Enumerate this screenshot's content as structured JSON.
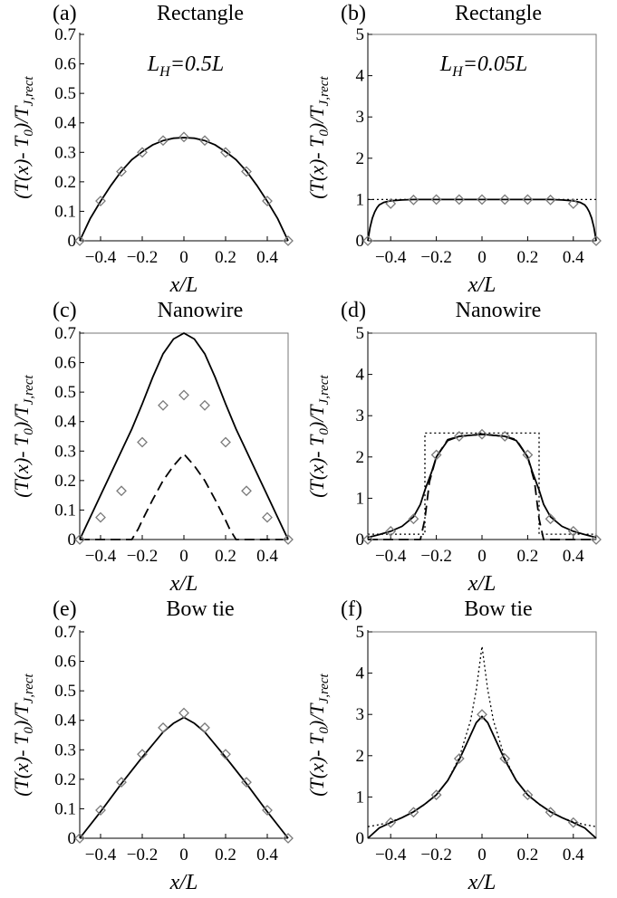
{
  "figure": {
    "ylabel_parts": [
      "(T(x)- T",
      "0",
      ")/T",
      "J,rect"
    ],
    "xlabel": "x/L"
  },
  "colors": {
    "line": "#000000",
    "marker": "#7a7a7a",
    "frame": "#777777"
  },
  "chart_data": [
    {
      "id": "a",
      "type": "line",
      "panel_letter": "(a)",
      "title": "Rectangle",
      "annotation": "L_H=0.5L",
      "xlabel": "x/L",
      "ylabel": "(T(x)-T0)/TJ,rect",
      "xlim": [
        -0.5,
        0.5
      ],
      "ylim": [
        0,
        0.7
      ],
      "xticks": [
        -0.4,
        -0.2,
        0,
        0.2,
        0.4
      ],
      "yticks": [
        0,
        0.1,
        0.2,
        0.3,
        0.4,
        0.5,
        0.6,
        0.7
      ],
      "ytick_labels": [
        "0",
        "0.1",
        "0.2",
        "0.3",
        "0.4",
        "0.5",
        "0.6",
        "0.7"
      ],
      "frame": false,
      "grid": false,
      "series": [
        {
          "style": "solid",
          "x": [
            -0.5,
            -0.45,
            -0.4,
            -0.35,
            -0.3,
            -0.25,
            -0.2,
            -0.15,
            -0.1,
            -0.05,
            0,
            0.05,
            0.1,
            0.15,
            0.2,
            0.25,
            0.3,
            0.35,
            0.4,
            0.45,
            0.5
          ],
          "y": [
            0,
            0.075,
            0.134,
            0.188,
            0.236,
            0.275,
            0.302,
            0.325,
            0.34,
            0.348,
            0.35,
            0.348,
            0.34,
            0.325,
            0.302,
            0.275,
            0.236,
            0.188,
            0.134,
            0.075,
            0
          ]
        },
        {
          "style": "diamond",
          "x": [
            -0.5,
            -0.4,
            -0.3,
            -0.2,
            -0.1,
            0,
            0.1,
            0.2,
            0.3,
            0.4,
            0.5
          ],
          "y": [
            0,
            0.135,
            0.235,
            0.3,
            0.34,
            0.352,
            0.34,
            0.3,
            0.235,
            0.135,
            0
          ]
        }
      ]
    },
    {
      "id": "b",
      "type": "line",
      "panel_letter": "(b)",
      "title": "Rectangle",
      "annotation": "L_H=0.05L",
      "xlabel": "x/L",
      "ylabel": "(T(x)-T0)/TJ,rect",
      "xlim": [
        -0.5,
        0.5
      ],
      "ylim": [
        0,
        5
      ],
      "xticks": [
        -0.4,
        -0.2,
        0,
        0.2,
        0.4
      ],
      "yticks": [
        0,
        1,
        2,
        3,
        4,
        5
      ],
      "ytick_labels": [
        "0",
        "1",
        "2",
        "3",
        "4",
        "5"
      ],
      "frame": true,
      "grid": false,
      "series": [
        {
          "style": "solid",
          "x": [
            -0.5,
            -0.49,
            -0.48,
            -0.47,
            -0.46,
            -0.45,
            -0.43,
            -0.4,
            -0.35,
            -0.3,
            -0.2,
            -0.1,
            0,
            0.1,
            0.2,
            0.3,
            0.35,
            0.4,
            0.43,
            0.45,
            0.46,
            0.47,
            0.48,
            0.49,
            0.5
          ],
          "y": [
            0,
            0.33,
            0.55,
            0.7,
            0.8,
            0.87,
            0.93,
            0.97,
            0.99,
            1,
            1,
            1,
            1,
            1,
            1,
            1,
            0.99,
            0.97,
            0.93,
            0.87,
            0.8,
            0.7,
            0.55,
            0.33,
            0
          ]
        },
        {
          "style": "dotted",
          "x": [
            -0.5,
            0.5
          ],
          "y": [
            1,
            1
          ]
        },
        {
          "style": "diamond",
          "x": [
            -0.5,
            -0.4,
            -0.3,
            -0.2,
            -0.1,
            0,
            0.1,
            0.2,
            0.3,
            0.4,
            0.5
          ],
          "y": [
            0,
            0.9,
            0.99,
            1,
            1,
            1,
            1,
            1,
            0.99,
            0.9,
            0
          ]
        }
      ]
    },
    {
      "id": "c",
      "type": "line",
      "panel_letter": "(c)",
      "title": "Nanowire",
      "annotation": "",
      "xlabel": "x/L",
      "ylabel": "(T(x)-T0)/TJ,rect",
      "xlim": [
        -0.5,
        0.5
      ],
      "ylim": [
        0,
        0.7
      ],
      "xticks": [
        -0.4,
        -0.2,
        0,
        0.2,
        0.4
      ],
      "yticks": [
        0,
        0.1,
        0.2,
        0.3,
        0.4,
        0.5,
        0.6,
        0.7
      ],
      "ytick_labels": [
        "0",
        "0.1",
        "0.2",
        "0.3",
        "0.4",
        "0.5",
        "0.6",
        "0.7"
      ],
      "frame": true,
      "grid": false,
      "series": [
        {
          "style": "solid",
          "x": [
            -0.5,
            -0.45,
            -0.4,
            -0.35,
            -0.3,
            -0.25,
            -0.2,
            -0.15,
            -0.1,
            -0.05,
            0,
            0.05,
            0.1,
            0.15,
            0.2,
            0.25,
            0.3,
            0.35,
            0.4,
            0.45,
            0.5
          ],
          "y": [
            0,
            0.075,
            0.15,
            0.225,
            0.3,
            0.375,
            0.46,
            0.55,
            0.63,
            0.68,
            0.7,
            0.68,
            0.63,
            0.55,
            0.46,
            0.375,
            0.3,
            0.225,
            0.15,
            0.075,
            0
          ]
        },
        {
          "style": "dashed",
          "x": [
            -0.5,
            -0.25,
            -0.22,
            -0.2,
            -0.15,
            -0.1,
            -0.05,
            0,
            0.05,
            0.1,
            0.15,
            0.2,
            0.22,
            0.25,
            0.5
          ],
          "y": [
            0,
            0,
            0.035,
            0.065,
            0.135,
            0.2,
            0.25,
            0.29,
            0.25,
            0.2,
            0.135,
            0.065,
            0.035,
            0,
            0
          ]
        },
        {
          "style": "diamond",
          "x": [
            -0.5,
            -0.4,
            -0.3,
            -0.2,
            -0.1,
            0,
            0.1,
            0.2,
            0.3,
            0.4,
            0.5
          ],
          "y": [
            0,
            0.075,
            0.165,
            0.33,
            0.455,
            0.49,
            0.455,
            0.33,
            0.165,
            0.075,
            0
          ]
        }
      ]
    },
    {
      "id": "d",
      "type": "line",
      "panel_letter": "(d)",
      "title": "Nanowire",
      "annotation": "",
      "xlabel": "x/L",
      "ylabel": "(T(x)-T0)/TJ,rect",
      "xlim": [
        -0.5,
        0.5
      ],
      "ylim": [
        0,
        5
      ],
      "xticks": [
        -0.4,
        -0.2,
        0,
        0.2,
        0.4
      ],
      "yticks": [
        0,
        1,
        2,
        3,
        4,
        5
      ],
      "ytick_labels": [
        "0",
        "1",
        "2",
        "3",
        "4",
        "5"
      ],
      "frame": true,
      "grid": false,
      "series": [
        {
          "style": "solid",
          "x": [
            -0.5,
            -0.45,
            -0.4,
            -0.35,
            -0.3,
            -0.27,
            -0.25,
            -0.22,
            -0.2,
            -0.15,
            -0.1,
            0,
            0.1,
            0.15,
            0.2,
            0.22,
            0.25,
            0.27,
            0.3,
            0.35,
            0.4,
            0.45,
            0.5
          ],
          "y": [
            0.05,
            0.12,
            0.2,
            0.32,
            0.55,
            0.85,
            1.2,
            1.65,
            2.0,
            2.4,
            2.5,
            2.55,
            2.5,
            2.4,
            2.0,
            1.65,
            1.2,
            0.85,
            0.55,
            0.32,
            0.2,
            0.12,
            0.05
          ]
        },
        {
          "style": "dashed",
          "x": [
            -0.5,
            -0.27,
            -0.25,
            -0.23,
            -0.2,
            -0.15,
            -0.1,
            0,
            0.1,
            0.15,
            0.2,
            0.23,
            0.25,
            0.27,
            0.5
          ],
          "y": [
            0,
            0,
            0.5,
            1.4,
            2.0,
            2.42,
            2.5,
            2.55,
            2.5,
            2.42,
            2.0,
            1.4,
            0.5,
            0,
            0
          ]
        },
        {
          "style": "dotted",
          "x": [
            -0.5,
            -0.25,
            -0.25,
            0.25,
            0.25,
            0.5
          ],
          "y": [
            0.13,
            0.13,
            2.58,
            2.58,
            0.13,
            0.13
          ]
        },
        {
          "style": "diamond",
          "x": [
            -0.5,
            -0.4,
            -0.3,
            -0.2,
            -0.1,
            0,
            0.1,
            0.2,
            0.3,
            0.4,
            0.5
          ],
          "y": [
            0,
            0.2,
            0.5,
            2.05,
            2.5,
            2.55,
            2.5,
            2.05,
            0.5,
            0.2,
            0
          ]
        }
      ]
    },
    {
      "id": "e",
      "type": "line",
      "panel_letter": "(e)",
      "title": "Bow tie",
      "annotation": "",
      "xlabel": "x/L",
      "ylabel": "(T(x)-T0)/TJ,rect",
      "xlim": [
        -0.5,
        0.5
      ],
      "ylim": [
        0,
        0.7
      ],
      "xticks": [
        -0.4,
        -0.2,
        0,
        0.2,
        0.4
      ],
      "yticks": [
        0,
        0.1,
        0.2,
        0.3,
        0.4,
        0.5,
        0.6,
        0.7
      ],
      "ytick_labels": [
        "0",
        "0.1",
        "0.2",
        "0.3",
        "0.4",
        "0.5",
        "0.6",
        "0.7"
      ],
      "frame": false,
      "grid": false,
      "series": [
        {
          "style": "solid",
          "x": [
            -0.5,
            -0.4,
            -0.3,
            -0.2,
            -0.1,
            -0.05,
            0,
            0.05,
            0.1,
            0.2,
            0.3,
            0.4,
            0.5
          ],
          "y": [
            0,
            0.09,
            0.185,
            0.275,
            0.36,
            0.39,
            0.41,
            0.39,
            0.36,
            0.275,
            0.185,
            0.09,
            0
          ]
        },
        {
          "style": "diamond",
          "x": [
            -0.5,
            -0.4,
            -0.3,
            -0.2,
            -0.1,
            0,
            0.1,
            0.2,
            0.3,
            0.4,
            0.5
          ],
          "y": [
            0,
            0.095,
            0.19,
            0.285,
            0.375,
            0.425,
            0.375,
            0.285,
            0.19,
            0.095,
            0
          ]
        }
      ]
    },
    {
      "id": "f",
      "type": "line",
      "panel_letter": "(f)",
      "title": "Bow tie",
      "annotation": "",
      "xlabel": "x/L",
      "ylabel": "(T(x)-T0)/TJ,rect",
      "xlim": [
        -0.5,
        0.5
      ],
      "ylim": [
        0,
        5
      ],
      "xticks": [
        -0.4,
        -0.2,
        0,
        0.2,
        0.4
      ],
      "yticks": [
        0,
        1,
        2,
        3,
        4,
        5
      ],
      "ytick_labels": [
        "0",
        "1",
        "2",
        "3",
        "4",
        "5"
      ],
      "frame": true,
      "grid": false,
      "series": [
        {
          "style": "solid",
          "x": [
            -0.5,
            -0.45,
            -0.4,
            -0.35,
            -0.3,
            -0.25,
            -0.2,
            -0.15,
            -0.1,
            -0.05,
            -0.025,
            0,
            0.025,
            0.05,
            0.1,
            0.15,
            0.2,
            0.25,
            0.3,
            0.35,
            0.4,
            0.45,
            0.5
          ],
          "y": [
            0,
            0.25,
            0.38,
            0.5,
            0.64,
            0.83,
            1.05,
            1.4,
            1.9,
            2.5,
            2.8,
            2.95,
            2.8,
            2.5,
            1.9,
            1.4,
            1.05,
            0.83,
            0.64,
            0.5,
            0.38,
            0.25,
            0
          ]
        },
        {
          "style": "dotted",
          "x": [
            -0.5,
            -0.45,
            -0.4,
            -0.35,
            -0.3,
            -0.25,
            -0.2,
            -0.15,
            -0.1,
            -0.05,
            -0.025,
            0,
            0.025,
            0.05,
            0.1,
            0.15,
            0.2,
            0.25,
            0.3,
            0.35,
            0.4,
            0.45,
            0.5
          ],
          "y": [
            0.28,
            0.33,
            0.4,
            0.5,
            0.64,
            0.82,
            1.05,
            1.4,
            1.95,
            2.85,
            3.6,
            4.65,
            3.6,
            2.85,
            1.95,
            1.4,
            1.05,
            0.82,
            0.64,
            0.5,
            0.4,
            0.33,
            0.28
          ]
        },
        {
          "style": "diamond",
          "x": [
            -0.4,
            -0.3,
            -0.2,
            -0.1,
            0,
            0.1,
            0.2,
            0.3,
            0.4
          ],
          "y": [
            0.38,
            0.63,
            1.05,
            1.93,
            3.0,
            1.93,
            1.05,
            0.63,
            0.38
          ]
        }
      ]
    }
  ]
}
